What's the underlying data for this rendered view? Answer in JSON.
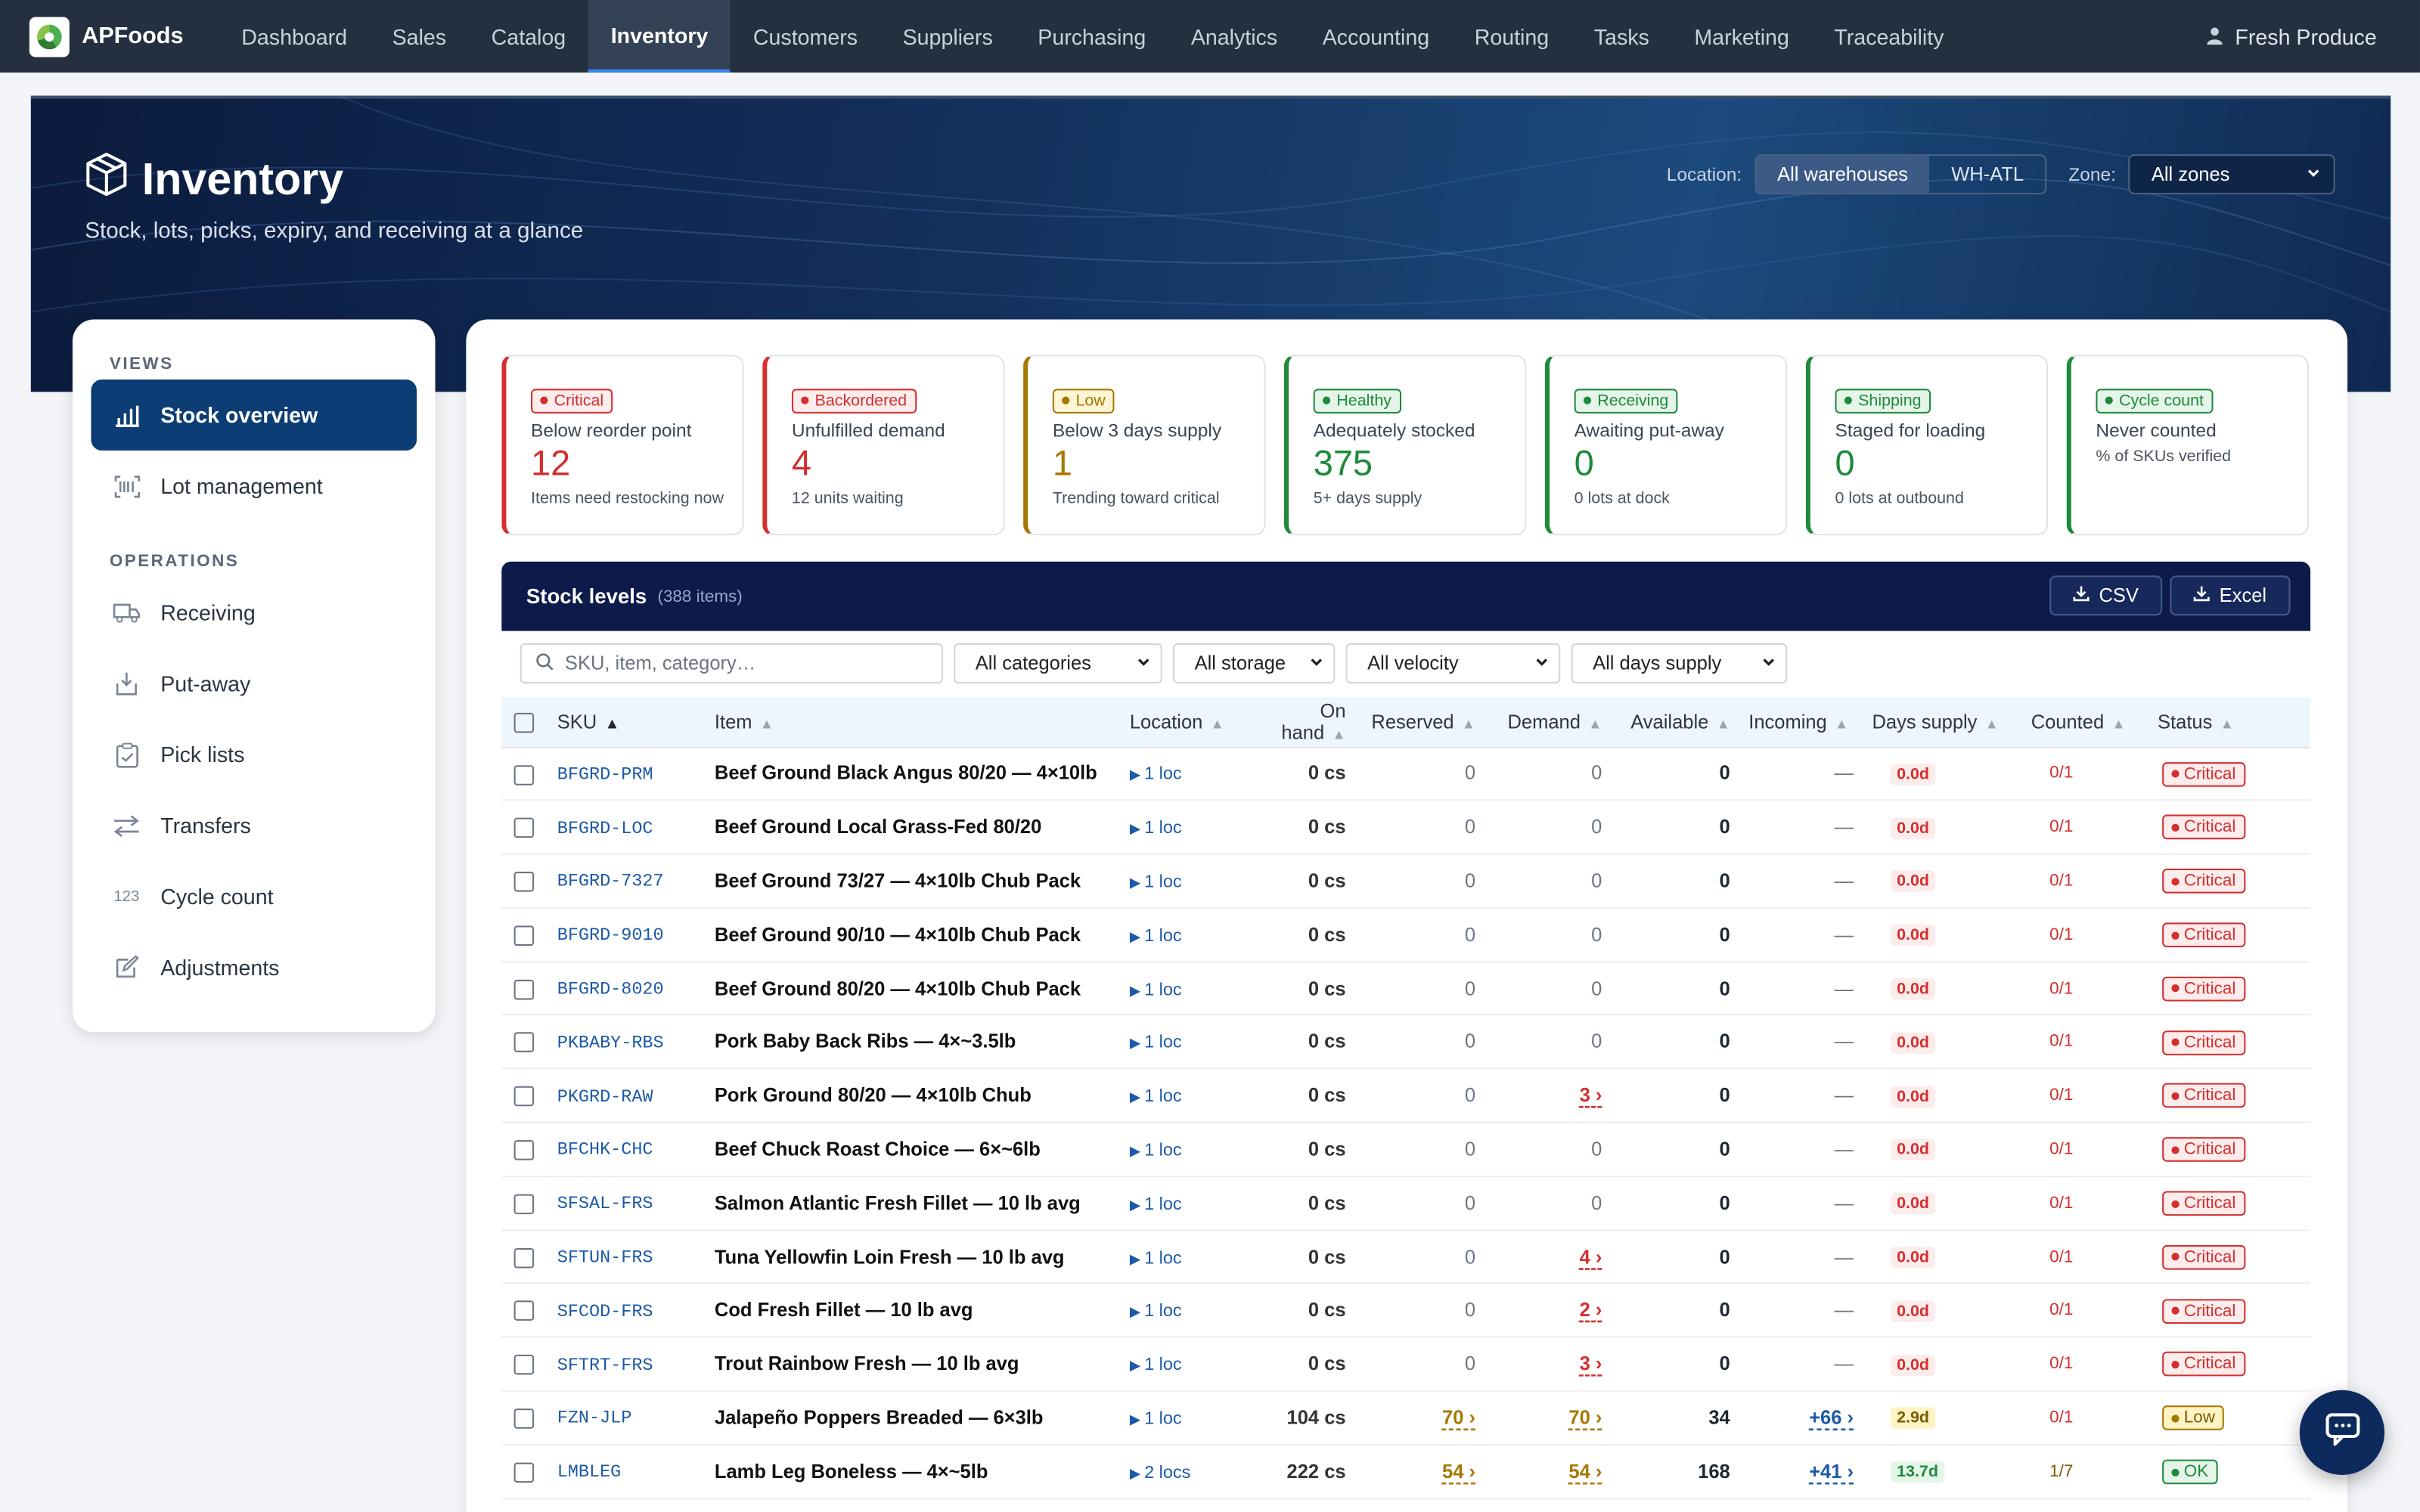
{
  "brand": {
    "name": "APFoods"
  },
  "nav": [
    {
      "label": "Dashboard"
    },
    {
      "label": "Sales"
    },
    {
      "label": "Catalog"
    },
    {
      "label": "Inventory",
      "active": true
    },
    {
      "label": "Customers"
    },
    {
      "label": "Suppliers"
    },
    {
      "label": "Purchasing"
    },
    {
      "label": "Analytics"
    },
    {
      "label": "Accounting"
    },
    {
      "label": "Routing"
    },
    {
      "label": "Tasks"
    },
    {
      "label": "Marketing"
    },
    {
      "label": "Traceability"
    }
  ],
  "user": {
    "name": "Fresh Produce",
    "icon": "user-icon"
  },
  "hero": {
    "title": "Inventory",
    "subtitle": "Stock, lots, picks, expiry, and receiving at a glance",
    "location_label": "Location:",
    "location_options": [
      "All warehouses",
      "WH-ATL"
    ],
    "location_selected": "All warehouses",
    "zone_label": "Zone:",
    "zone_value": "All zones"
  },
  "sidebar": {
    "views_label": "VIEWS",
    "views": [
      {
        "label": "Stock overview",
        "icon": "bar-chart-icon",
        "active": true
      },
      {
        "label": "Lot management",
        "icon": "barcode-icon"
      }
    ],
    "operations_label": "OPERATIONS",
    "operations": [
      {
        "label": "Receiving",
        "icon": "truck-icon"
      },
      {
        "label": "Put-away",
        "icon": "download-box-icon"
      },
      {
        "label": "Pick lists",
        "icon": "clipboard-icon"
      },
      {
        "label": "Transfers",
        "icon": "arrows-exchange-icon"
      },
      {
        "label": "Cycle count",
        "icon": "numbers-123-icon"
      },
      {
        "label": "Adjustments",
        "icon": "edit-icon"
      }
    ]
  },
  "kpis": [
    {
      "badge": "Critical",
      "label": "Below reorder point",
      "value": "12",
      "note": "Items need restocking now",
      "color": "#d32f2f"
    },
    {
      "badge": "Backordered",
      "label": "Unfulfilled demand",
      "value": "4",
      "note": "12 units waiting",
      "color": "#d32f2f"
    },
    {
      "badge": "Low",
      "label": "Below 3 days supply",
      "value": "1",
      "note": "Trending toward critical",
      "color": "#a77800"
    },
    {
      "badge": "Healthy",
      "label": "Adequately stocked",
      "value": "375",
      "note": "5+ days supply",
      "color": "#1e8a3a"
    },
    {
      "badge": "Receiving",
      "label": "Awaiting put-away",
      "value": "0",
      "note": "0 lots at dock",
      "color": "#1e8a3a"
    },
    {
      "badge": "Shipping",
      "label": "Staged for loading",
      "value": "0",
      "note": "0 lots at outbound",
      "color": "#1e8a3a"
    },
    {
      "badge": "Cycle count",
      "label": "Never counted",
      "value": "",
      "note": "% of SKUs verified",
      "color": "#1e8a3a"
    }
  ],
  "stock": {
    "title": "Stock levels",
    "count": "(388 items)",
    "csv_label": "CSV",
    "excel_label": "Excel",
    "search_placeholder": "SKU, item, category…",
    "filters": [
      "All categories",
      "All storage",
      "All velocity",
      "All days supply"
    ],
    "columns": [
      "SKU",
      "Item",
      "Location",
      "On hand",
      "Reserved",
      "Demand",
      "Available",
      "Incoming",
      "Days supply",
      "Counted",
      "Status"
    ],
    "rows": [
      {
        "sku": "BFGRD-PRM",
        "item": "Beef Ground Black Angus 80/20 — 4×10lb",
        "loc": "1 loc",
        "onhand": "0 cs",
        "reserved": "0",
        "demand": "0",
        "available": "0",
        "incoming": "—",
        "days": "0.0d",
        "counted": "0/1",
        "status": "Critical"
      },
      {
        "sku": "BFGRD-LOC",
        "item": "Beef Ground Local Grass-Fed 80/20",
        "loc": "1 loc",
        "onhand": "0 cs",
        "reserved": "0",
        "demand": "0",
        "available": "0",
        "incoming": "—",
        "days": "0.0d",
        "counted": "0/1",
        "status": "Critical"
      },
      {
        "sku": "BFGRD-7327",
        "item": "Beef Ground 73/27 — 4×10lb Chub Pack",
        "loc": "1 loc",
        "onhand": "0 cs",
        "reserved": "0",
        "demand": "0",
        "available": "0",
        "incoming": "—",
        "days": "0.0d",
        "counted": "0/1",
        "status": "Critical"
      },
      {
        "sku": "BFGRD-9010",
        "item": "Beef Ground 90/10 — 4×10lb Chub Pack",
        "loc": "1 loc",
        "onhand": "0 cs",
        "reserved": "0",
        "demand": "0",
        "available": "0",
        "incoming": "—",
        "days": "0.0d",
        "counted": "0/1",
        "status": "Critical"
      },
      {
        "sku": "BFGRD-8020",
        "item": "Beef Ground 80/20 — 4×10lb Chub Pack",
        "loc": "1 loc",
        "onhand": "0 cs",
        "reserved": "0",
        "demand": "0",
        "available": "0",
        "incoming": "—",
        "days": "0.0d",
        "counted": "0/1",
        "status": "Critical"
      },
      {
        "sku": "PKBABY-RBS",
        "item": "Pork Baby Back Ribs — 4×~3.5lb",
        "loc": "1 loc",
        "onhand": "0 cs",
        "reserved": "0",
        "demand": "0",
        "available": "0",
        "incoming": "—",
        "days": "0.0d",
        "counted": "0/1",
        "status": "Critical"
      },
      {
        "sku": "PKGRD-RAW",
        "item": "Pork Ground 80/20 — 4×10lb Chub",
        "loc": "1 loc",
        "onhand": "0 cs",
        "reserved": "0",
        "demand": "3 ›",
        "available": "0",
        "incoming": "—",
        "days": "0.0d",
        "counted": "0/1",
        "status": "Critical"
      },
      {
        "sku": "BFCHK-CHC",
        "item": "Beef Chuck Roast Choice — 6×~6lb",
        "loc": "1 loc",
        "onhand": "0 cs",
        "reserved": "0",
        "demand": "0",
        "available": "0",
        "incoming": "—",
        "days": "0.0d",
        "counted": "0/1",
        "status": "Critical"
      },
      {
        "sku": "SFSAL-FRS",
        "item": "Salmon Atlantic Fresh Fillet — 10 lb avg",
        "loc": "1 loc",
        "onhand": "0 cs",
        "reserved": "0",
        "demand": "0",
        "available": "0",
        "incoming": "—",
        "days": "0.0d",
        "counted": "0/1",
        "status": "Critical"
      },
      {
        "sku": "SFTUN-FRS",
        "item": "Tuna Yellowfin Loin Fresh — 10 lb avg",
        "loc": "1 loc",
        "onhand": "0 cs",
        "reserved": "0",
        "demand": "4 ›",
        "available": "0",
        "incoming": "—",
        "days": "0.0d",
        "counted": "0/1",
        "status": "Critical"
      },
      {
        "sku": "SFCOD-FRS",
        "item": "Cod Fresh Fillet — 10 lb avg",
        "loc": "1 loc",
        "onhand": "0 cs",
        "reserved": "0",
        "demand": "2 ›",
        "available": "0",
        "incoming": "—",
        "days": "0.0d",
        "counted": "0/1",
        "status": "Critical"
      },
      {
        "sku": "SFTRT-FRS",
        "item": "Trout Rainbow Fresh — 10 lb avg",
        "loc": "1 loc",
        "onhand": "0 cs",
        "reserved": "0",
        "demand": "3 ›",
        "available": "0",
        "incoming": "—",
        "days": "0.0d",
        "counted": "0/1",
        "status": "Critical"
      },
      {
        "sku": "FZN-JLP",
        "item": "Jalapeño Poppers Breaded — 6×3lb",
        "loc": "1 loc",
        "onhand": "104 cs",
        "reserved": "70 ›",
        "demand": "70 ›",
        "available": "34",
        "incoming": "+66 ›",
        "days": "2.9d",
        "counted": "0/1",
        "status": "Low"
      },
      {
        "sku": "LMBLEG",
        "item": "Lamb Leg Boneless — 4×~5lb",
        "loc": "2 locs",
        "onhand": "222 cs",
        "reserved": "54 ›",
        "demand": "54 ›",
        "available": "168",
        "incoming": "+41 ›",
        "days": "13.7d",
        "counted": "1/7",
        "status": "OK"
      }
    ]
  },
  "colors": {
    "critical": "#d32f2f",
    "low": "#a77800",
    "ok": "#1e8a3a",
    "link": "#1c5aa6",
    "header": "#0d1b4b"
  }
}
